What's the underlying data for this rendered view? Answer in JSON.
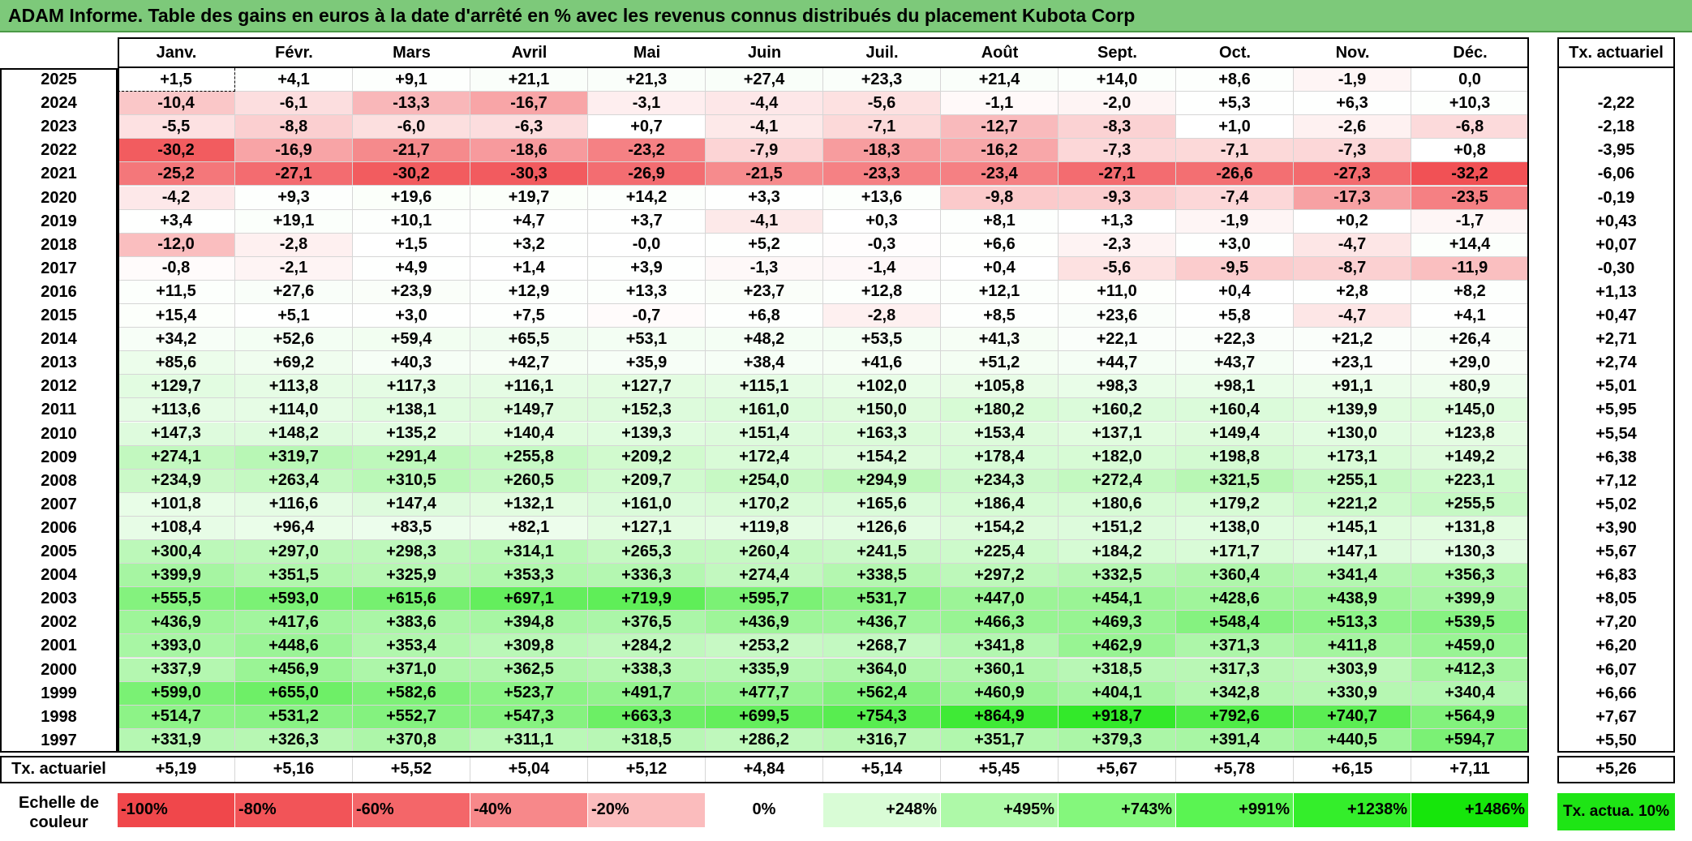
{
  "title": "ADAM Informe. Table des gains en euros à la date d'arrêté en % avec les revenus connus distribués du placement Kubota Corp",
  "months": [
    "Janv.",
    "Févr.",
    "Mars",
    "Avril",
    "Mai",
    "Juin",
    "Juil.",
    "Août",
    "Sept.",
    "Oct.",
    "Nov.",
    "Déc."
  ],
  "tx_header": "Tx. actuariel",
  "rows": [
    {
      "year": "2025",
      "values": [
        "+1,5",
        "+4,1",
        "+9,1",
        "+21,1",
        "+21,3",
        "+27,4",
        "+23,3",
        "+21,4",
        "+14,0",
        "+8,6",
        "-1,9",
        "0,0"
      ],
      "tx": ""
    },
    {
      "year": "2024",
      "values": [
        "-10,4",
        "-6,1",
        "-13,3",
        "-16,7",
        "-3,1",
        "-4,4",
        "-5,6",
        "-1,1",
        "-2,0",
        "+5,3",
        "+6,3",
        "+10,3"
      ],
      "tx": "-2,22"
    },
    {
      "year": "2023",
      "values": [
        "-5,5",
        "-8,8",
        "-6,0",
        "-6,3",
        "+0,7",
        "-4,1",
        "-7,1",
        "-12,7",
        "-8,3",
        "+1,0",
        "-2,6",
        "-6,8"
      ],
      "tx": "-2,18"
    },
    {
      "year": "2022",
      "values": [
        "-30,2",
        "-16,9",
        "-21,7",
        "-18,6",
        "-23,2",
        "-7,9",
        "-18,3",
        "-16,2",
        "-7,3",
        "-7,1",
        "-7,3",
        "+0,8"
      ],
      "tx": "-3,95"
    },
    {
      "year": "2021",
      "values": [
        "-25,2",
        "-27,1",
        "-30,2",
        "-30,3",
        "-26,9",
        "-21,5",
        "-23,3",
        "-23,4",
        "-27,1",
        "-26,6",
        "-27,3",
        "-32,2"
      ],
      "tx": "-6,06"
    },
    {
      "year": "2020",
      "values": [
        "-4,2",
        "+9,3",
        "+19,6",
        "+19,7",
        "+14,2",
        "+3,3",
        "+13,6",
        "-9,8",
        "-9,3",
        "-7,4",
        "-17,3",
        "-23,5"
      ],
      "tx": "-0,19"
    },
    {
      "year": "2019",
      "values": [
        "+3,4",
        "+19,1",
        "+10,1",
        "+4,7",
        "+3,7",
        "-4,1",
        "+0,3",
        "+8,1",
        "+1,3",
        "-1,9",
        "+0,2",
        "-1,7"
      ],
      "tx": "+0,43"
    },
    {
      "year": "2018",
      "values": [
        "-12,0",
        "-2,8",
        "+1,5",
        "+3,2",
        "-0,0",
        "+5,2",
        "-0,3",
        "+6,6",
        "-2,3",
        "+3,0",
        "-4,7",
        "+14,4"
      ],
      "tx": "+0,07"
    },
    {
      "year": "2017",
      "values": [
        "-0,8",
        "-2,1",
        "+4,9",
        "+1,4",
        "+3,9",
        "-1,3",
        "-1,4",
        "+0,4",
        "-5,6",
        "-9,5",
        "-8,7",
        "-11,9"
      ],
      "tx": "-0,30"
    },
    {
      "year": "2016",
      "values": [
        "+11,5",
        "+27,6",
        "+23,9",
        "+12,9",
        "+13,3",
        "+23,7",
        "+12,8",
        "+12,1",
        "+11,0",
        "+0,4",
        "+2,8",
        "+8,2"
      ],
      "tx": "+1,13"
    },
    {
      "year": "2015",
      "values": [
        "+15,4",
        "+5,1",
        "+3,0",
        "+7,5",
        "-0,7",
        "+6,8",
        "-2,8",
        "+8,5",
        "+23,6",
        "+5,8",
        "-4,7",
        "+4,1"
      ],
      "tx": "+0,47"
    },
    {
      "year": "2014",
      "values": [
        "+34,2",
        "+52,6",
        "+59,4",
        "+65,5",
        "+53,1",
        "+48,2",
        "+53,5",
        "+41,3",
        "+22,1",
        "+22,3",
        "+21,2",
        "+26,4"
      ],
      "tx": "+2,71"
    },
    {
      "year": "2013",
      "values": [
        "+85,6",
        "+69,2",
        "+40,3",
        "+42,7",
        "+35,9",
        "+38,4",
        "+41,6",
        "+51,2",
        "+44,7",
        "+43,7",
        "+23,1",
        "+29,0"
      ],
      "tx": "+2,74"
    },
    {
      "year": "2012",
      "values": [
        "+129,7",
        "+113,8",
        "+117,3",
        "+116,1",
        "+127,7",
        "+115,1",
        "+102,0",
        "+105,8",
        "+98,3",
        "+98,1",
        "+91,1",
        "+80,9"
      ],
      "tx": "+5,01"
    },
    {
      "year": "2011",
      "values": [
        "+113,6",
        "+114,0",
        "+138,1",
        "+149,7",
        "+152,3",
        "+161,0",
        "+150,0",
        "+180,2",
        "+160,2",
        "+160,4",
        "+139,9",
        "+145,0"
      ],
      "tx": "+5,95"
    },
    {
      "year": "2010",
      "values": [
        "+147,3",
        "+148,2",
        "+135,2",
        "+140,4",
        "+139,3",
        "+151,4",
        "+163,3",
        "+153,4",
        "+137,1",
        "+149,4",
        "+130,0",
        "+123,8"
      ],
      "tx": "+5,54"
    },
    {
      "year": "2009",
      "values": [
        "+274,1",
        "+319,7",
        "+291,4",
        "+255,8",
        "+209,2",
        "+172,4",
        "+154,2",
        "+178,4",
        "+182,0",
        "+198,8",
        "+173,1",
        "+149,2"
      ],
      "tx": "+6,38"
    },
    {
      "year": "2008",
      "values": [
        "+234,9",
        "+263,4",
        "+310,5",
        "+260,5",
        "+209,7",
        "+254,0",
        "+294,9",
        "+234,3",
        "+272,4",
        "+321,5",
        "+255,1",
        "+223,1"
      ],
      "tx": "+7,12"
    },
    {
      "year": "2007",
      "values": [
        "+101,8",
        "+116,6",
        "+147,4",
        "+132,1",
        "+161,0",
        "+170,2",
        "+165,6",
        "+186,4",
        "+180,6",
        "+179,2",
        "+221,2",
        "+255,5"
      ],
      "tx": "+5,02"
    },
    {
      "year": "2006",
      "values": [
        "+108,4",
        "+96,4",
        "+83,5",
        "+82,1",
        "+127,1",
        "+119,8",
        "+126,6",
        "+154,2",
        "+151,2",
        "+138,0",
        "+145,1",
        "+131,8"
      ],
      "tx": "+3,90"
    },
    {
      "year": "2005",
      "values": [
        "+300,4",
        "+297,0",
        "+298,3",
        "+314,1",
        "+265,3",
        "+260,4",
        "+241,5",
        "+225,4",
        "+184,2",
        "+171,7",
        "+147,1",
        "+130,3"
      ],
      "tx": "+5,67"
    },
    {
      "year": "2004",
      "values": [
        "+399,9",
        "+351,5",
        "+325,9",
        "+353,3",
        "+336,3",
        "+274,4",
        "+338,5",
        "+297,2",
        "+332,5",
        "+360,4",
        "+341,4",
        "+356,3"
      ],
      "tx": "+6,83"
    },
    {
      "year": "2003",
      "values": [
        "+555,5",
        "+593,0",
        "+615,6",
        "+697,1",
        "+719,9",
        "+595,7",
        "+531,7",
        "+447,0",
        "+454,1",
        "+428,6",
        "+438,9",
        "+399,9"
      ],
      "tx": "+8,05"
    },
    {
      "year": "2002",
      "values": [
        "+436,9",
        "+417,6",
        "+383,6",
        "+394,8",
        "+376,5",
        "+436,9",
        "+436,7",
        "+466,3",
        "+469,3",
        "+548,4",
        "+513,3",
        "+539,5"
      ],
      "tx": "+7,20"
    },
    {
      "year": "2001",
      "values": [
        "+393,0",
        "+448,6",
        "+353,4",
        "+309,8",
        "+284,2",
        "+253,2",
        "+268,7",
        "+341,8",
        "+462,9",
        "+371,3",
        "+411,8",
        "+459,0"
      ],
      "tx": "+6,20"
    },
    {
      "year": "2000",
      "values": [
        "+337,9",
        "+456,9",
        "+371,0",
        "+362,5",
        "+338,3",
        "+335,9",
        "+364,0",
        "+360,1",
        "+318,5",
        "+317,3",
        "+303,9",
        "+412,3"
      ],
      "tx": "+6,07"
    },
    {
      "year": "1999",
      "values": [
        "+599,0",
        "+655,0",
        "+582,6",
        "+523,7",
        "+491,7",
        "+477,7",
        "+562,4",
        "+460,9",
        "+404,1",
        "+342,8",
        "+330,9",
        "+340,4"
      ],
      "tx": "+6,66"
    },
    {
      "year": "1998",
      "values": [
        "+514,7",
        "+531,2",
        "+552,7",
        "+547,3",
        "+663,3",
        "+699,5",
        "+754,3",
        "+864,9",
        "+918,7",
        "+792,6",
        "+740,7",
        "+564,9"
      ],
      "tx": "+7,67"
    },
    {
      "year": "1997",
      "values": [
        "+331,9",
        "+326,3",
        "+370,8",
        "+311,1",
        "+318,5",
        "+286,2",
        "+316,7",
        "+351,7",
        "+379,3",
        "+391,4",
        "+440,5",
        "+594,7"
      ],
      "tx": "+5,50"
    }
  ],
  "footer": {
    "label": "Tx. actuariel",
    "values": [
      "+5,19",
      "+5,16",
      "+5,52",
      "+5,04",
      "+5,12",
      "+4,84",
      "+5,14",
      "+5,45",
      "+5,67",
      "+5,78",
      "+6,15",
      "+7,11"
    ],
    "tx": "+5,26"
  },
  "legend": {
    "label": "Echelle de couleur",
    "items": [
      {
        "text": "-100%",
        "color": "#f0474b",
        "align": "left"
      },
      {
        "text": "-80%",
        "color": "#f25458",
        "align": "left"
      },
      {
        "text": "-60%",
        "color": "#f46669",
        "align": "left"
      },
      {
        "text": "-40%",
        "color": "#f7888a",
        "align": "left"
      },
      {
        "text": "-20%",
        "color": "#fbbcbd",
        "align": "left"
      },
      {
        "text": "0%",
        "color": "#ffffff",
        "align": "center"
      },
      {
        "text": "+248%",
        "color": "#d9fcd6",
        "align": "right"
      },
      {
        "text": "+495%",
        "color": "#aef9a8",
        "align": "right"
      },
      {
        "text": "+743%",
        "color": "#84f77c",
        "align": "right"
      },
      {
        "text": "+991%",
        "color": "#5af452",
        "align": "right"
      },
      {
        "text": "+1238%",
        "color": "#34ee2b",
        "align": "right"
      },
      {
        "text": "+1486%",
        "color": "#16e60b",
        "align": "right"
      }
    ],
    "tx_label": "Tx. actua. 10%",
    "tx_color": "#1ee515"
  },
  "colors": {
    "title_bg": "#7dc97a",
    "negative": "#f0474b",
    "positive": "#16e60b"
  }
}
